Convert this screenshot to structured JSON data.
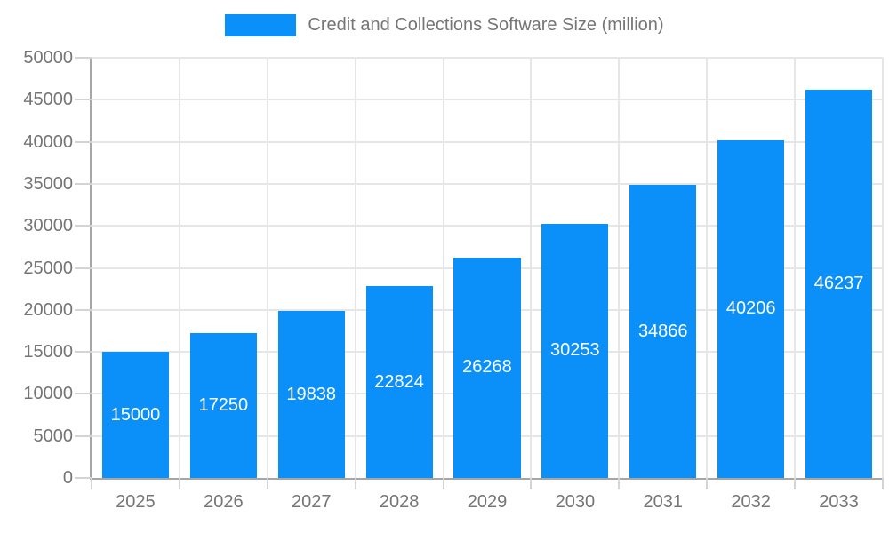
{
  "chart_data": {
    "type": "bar",
    "title": "Credit and Collections Software Size (million)",
    "categories": [
      "2025",
      "2026",
      "2027",
      "2028",
      "2029",
      "2030",
      "2031",
      "2032",
      "2033"
    ],
    "values": [
      15000,
      17250,
      19838,
      22824,
      26268,
      30253,
      34866,
      40206,
      46237
    ],
    "xlabel": "",
    "ylabel": "",
    "ylim": [
      0,
      50000
    ],
    "ytick_step": 5000,
    "grid": true,
    "legend_position": "top",
    "bar_labels": "inside-center",
    "colors": {
      "bar": "#0b90f9",
      "bar_label": "#ffffff",
      "axis_text": "#757575",
      "axis_line": "#a6a6a6",
      "gridline": "#e6e6e6",
      "tick": "#d4d4d4",
      "background": "#ffffff"
    }
  }
}
